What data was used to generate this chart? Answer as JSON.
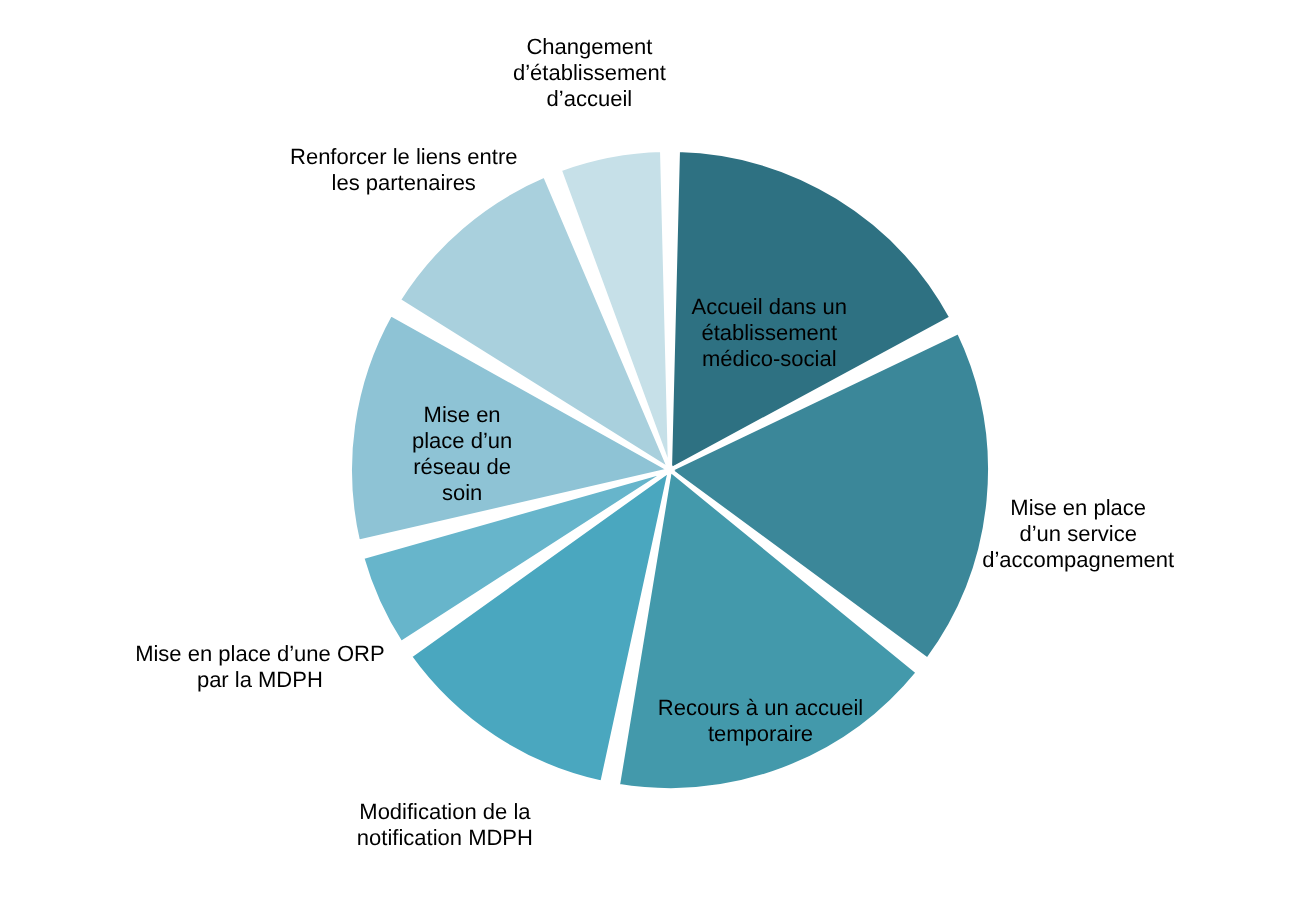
{
  "chart_data": {
    "type": "pie",
    "categories": [
      "Accueil dans un établissement médico-social",
      "Mise en place d’un service d’accompagnement",
      "Recours à un accueil temporaire",
      "Modification de la notification MDPH",
      "Mise en place d’une ORP par la MDPH",
      "Mise en place d’un réseau de soin",
      "Renforcer le liens entre les partenaires",
      "Changement d’établissement d’accueil"
    ],
    "values": [
      17.5,
      18,
      17.5,
      12.5,
      5.5,
      12.5,
      10.5,
      6
    ],
    "colors": [
      "#2e7182",
      "#3b8799",
      "#4399ab",
      "#4aa7bf",
      "#67b5cb",
      "#8ec3d5",
      "#a9d0dd",
      "#c6e0e8"
    ]
  }
}
